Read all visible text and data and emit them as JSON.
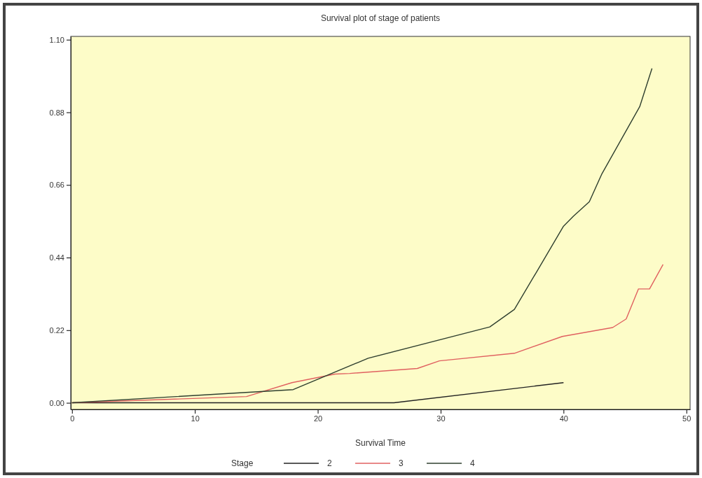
{
  "chart_data": {
    "type": "line",
    "title": "Survival plot of stage of patients",
    "xlabel": "Survival Time",
    "legend_title": "Stage",
    "legend": "bottom",
    "grid": false,
    "marker": "none",
    "line_style": "solid",
    "xlim": [
      -0.1,
      50.3
    ],
    "xticks": [
      0,
      10,
      20,
      30,
      40,
      50
    ],
    "ylim": [
      -0.02,
      1.11
    ],
    "yticks": [
      {
        "value": 0,
        "label": "0.00"
      },
      {
        "value": 0.22,
        "label": "0.22"
      },
      {
        "value": 0.44,
        "label": "0.44"
      },
      {
        "value": 0.66,
        "label": "0.66"
      },
      {
        "value": 0.88,
        "label": "0.88"
      },
      {
        "value": 1.1,
        "label": "1.10"
      }
    ],
    "series": [
      {
        "name": "2",
        "color": "#222222",
        "x": [
          0,
          26.2,
          40
        ],
        "values": [
          0,
          0,
          0.061
        ]
      },
      {
        "name": "3",
        "color": "#e06060",
        "x": [
          0,
          14.2,
          17.9,
          21.4,
          22.6,
          28.1,
          29.9,
          36,
          39.9,
          44,
          45.1,
          46.1,
          47,
          48.1
        ],
        "values": [
          0,
          0.019,
          0.061,
          0.087,
          0.089,
          0.104,
          0.127,
          0.15,
          0.201,
          0.228,
          0.254,
          0.345,
          0.345,
          0.419
        ]
      },
      {
        "name": "4",
        "color": "#2f3f2f",
        "x": [
          0,
          18,
          24.1,
          34,
          36,
          37.8,
          40,
          40.8,
          42.1,
          43.1,
          46.2,
          47.2
        ],
        "values": [
          0,
          0.04,
          0.135,
          0.23,
          0.283,
          0.396,
          0.535,
          0.565,
          0.609,
          0.692,
          0.897,
          1.013
        ]
      }
    ]
  }
}
